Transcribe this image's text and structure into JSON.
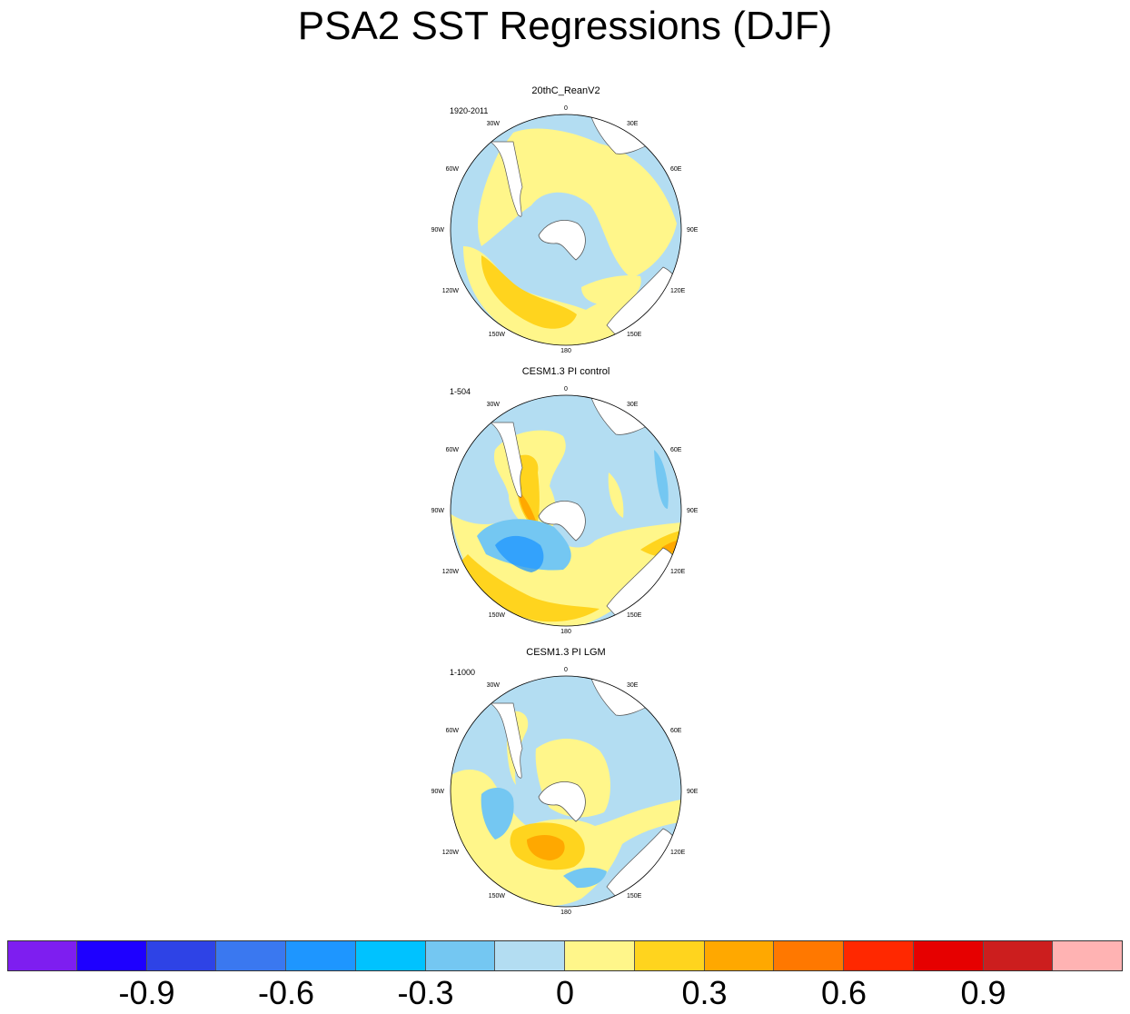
{
  "title": "PSA2 SST Regressions (DJF)",
  "panels": [
    {
      "title": "20thC_ReanV2",
      "period": "1920-2011"
    },
    {
      "title": "CESM1.3 PI control",
      "period": "1-504"
    },
    {
      "title": "CESM1.3 PI LGM",
      "period": "1-1000"
    }
  ],
  "longitude_labels": {
    "top": "0",
    "bottom": "180",
    "left": [
      "30W",
      "60W",
      "90W",
      "120W",
      "150W"
    ],
    "right": [
      "30E",
      "60E",
      "90E",
      "120E",
      "150E"
    ]
  },
  "colorbar": {
    "colors": [
      "#7e1ef0",
      "#1e00ff",
      "#2e43e6",
      "#3a78f0",
      "#1e96ff",
      "#00c2ff",
      "#74c7f2",
      "#b3ddf2",
      "#fff68a",
      "#ffd41e",
      "#ffa800",
      "#ff7800",
      "#ff2800",
      "#e60000",
      "#cc1e1e",
      "#ffb3b3"
    ],
    "labels": [
      "-0.9",
      "-0.6",
      "-0.3",
      "0",
      "0.3",
      "0.6",
      "0.9"
    ]
  }
}
